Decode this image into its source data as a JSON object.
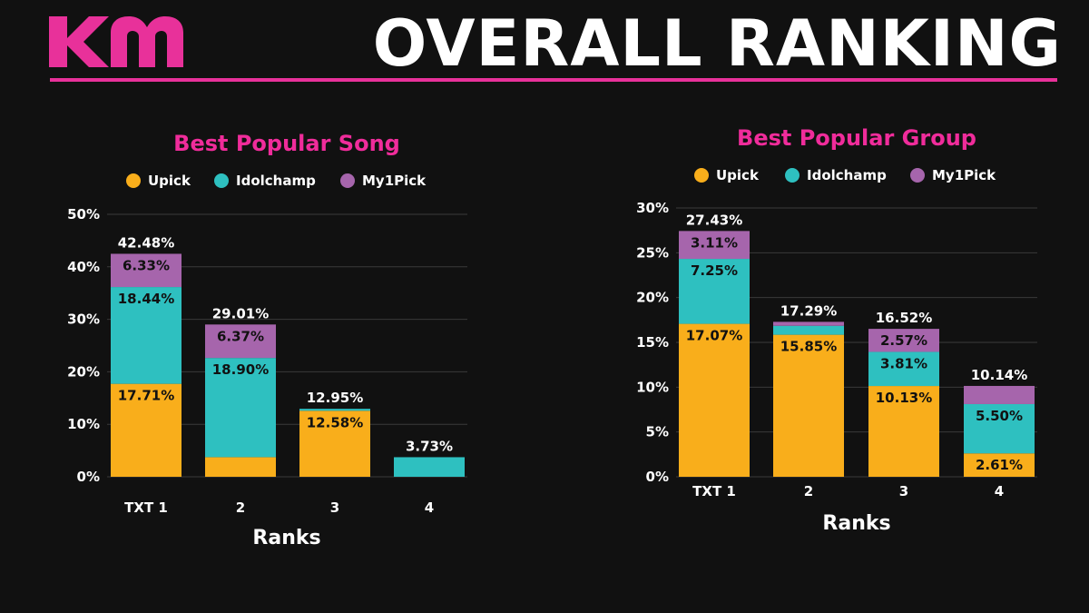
{
  "header": {
    "title": "OVERALL RANKING"
  },
  "colors": {
    "accent": "#e8319a",
    "upick": "#f9ae1b",
    "idolchamp": "#2ec0c0",
    "my1pick": "#a665ac"
  },
  "chart_data": [
    {
      "type": "bar",
      "stacked": true,
      "title": "Best Popular Song",
      "xlabel": "Ranks",
      "ylabel": "",
      "categories": [
        "TXT 1",
        "2",
        "3",
        "4"
      ],
      "series": [
        {
          "name": "Upick",
          "values": [
            17.71,
            3.74,
            12.58,
            0
          ]
        },
        {
          "name": "Idolchamp",
          "values": [
            18.44,
            18.9,
            0.37,
            3.73
          ]
        },
        {
          "name": "My1Pick",
          "values": [
            6.33,
            6.37,
            0,
            0
          ]
        }
      ],
      "segment_labels": [
        [
          "17.71%",
          "",
          "12.58%",
          ""
        ],
        [
          "18.44%",
          "18.90%",
          "",
          ""
        ],
        [
          "6.33%",
          "6.37%",
          "",
          ""
        ]
      ],
      "totals": [
        "42.48%",
        "29.01%",
        "12.95%",
        "3.73%"
      ],
      "yticks": [
        "0%",
        "10%",
        "20%",
        "30%",
        "40%",
        "50%"
      ],
      "ylim": [
        0,
        50
      ],
      "legend": "top",
      "grid": true
    },
    {
      "type": "bar",
      "stacked": true,
      "title": "Best Popular Group",
      "xlabel": "Ranks",
      "ylabel": "",
      "categories": [
        "TXT 1",
        "2",
        "3",
        "4"
      ],
      "series": [
        {
          "name": "Upick",
          "values": [
            17.07,
            15.85,
            10.13,
            2.61
          ]
        },
        {
          "name": "Idolchamp",
          "values": [
            7.25,
            1.0,
            3.81,
            5.5
          ]
        },
        {
          "name": "My1Pick",
          "values": [
            3.11,
            0.44,
            2.57,
            2.03
          ]
        }
      ],
      "segment_labels": [
        [
          "17.07%",
          "15.85%",
          "10.13%",
          "2.61%"
        ],
        [
          "7.25%",
          "",
          "3.81%",
          "5.50%"
        ],
        [
          "3.11%",
          "",
          "2.57%",
          ""
        ]
      ],
      "totals": [
        "27.43%",
        "17.29%",
        "16.52%",
        "10.14%"
      ],
      "yticks": [
        "0%",
        "5%",
        "10%",
        "15%",
        "20%",
        "25%",
        "30%"
      ],
      "ylim": [
        0,
        30
      ],
      "legend": "top",
      "grid": true
    }
  ]
}
